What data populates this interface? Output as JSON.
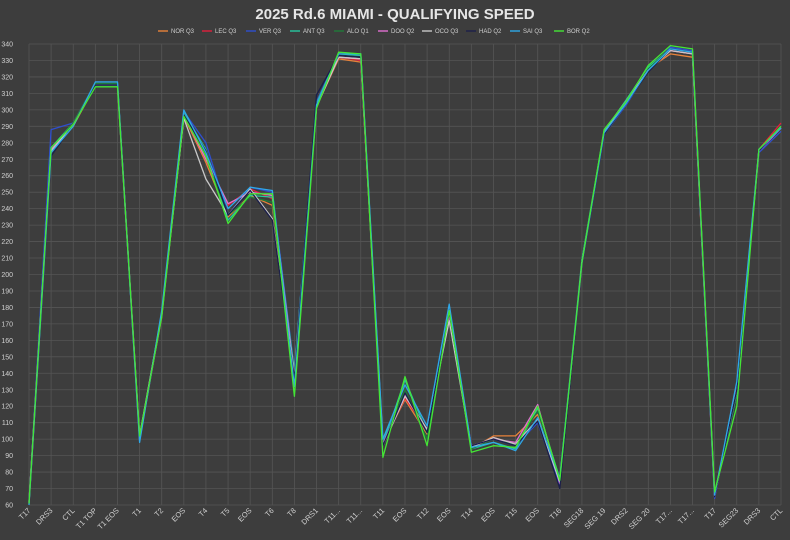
{
  "chart_data": {
    "type": "line",
    "title": "2025 Rd.6 MIAMI - QUALIFYING SPEED",
    "xlabel": "",
    "ylabel": "",
    "ylim": [
      60,
      340
    ],
    "y_ticks": [
      60,
      70,
      80,
      90,
      100,
      110,
      120,
      130,
      140,
      150,
      160,
      170,
      180,
      190,
      200,
      210,
      220,
      230,
      240,
      250,
      260,
      270,
      280,
      290,
      300,
      310,
      320,
      330,
      340
    ],
    "grid": true,
    "legend_position": "top-center",
    "categories": [
      "T17",
      "DRS3",
      "CTL",
      "T1 TOP",
      "T1 EOS",
      "T1",
      "T2",
      "EOS",
      "T4",
      "T5",
      "EOS",
      "T6",
      "T8",
      "DRS1",
      "T11...",
      "T11...",
      "T11",
      "EOS",
      "T12",
      "EOS",
      "T14",
      "EOS",
      "T15",
      "EOS",
      "T16",
      "SEG18",
      "SEG 19",
      "DRS2",
      "SEG 20",
      "T17...",
      "T17...",
      "T17",
      "SEG23",
      "DRS3",
      "CTL"
    ],
    "series": [
      {
        "name": "NOR Q3",
        "color": "#e8823a",
        "values": [
          61,
          275,
          290,
          315,
          315,
          100,
          175,
          296,
          268,
          235,
          248,
          242,
          140,
          302,
          331,
          329,
          98,
          124,
          103,
          175,
          94,
          102,
          102,
          115,
          74,
          207,
          287,
          306,
          325,
          334,
          332,
          65,
          130,
          275,
          290
        ]
      },
      {
        "name": "LEC Q3",
        "color": "#e0203c",
        "values": [
          62,
          276,
          291,
          315,
          315,
          101,
          174,
          297,
          270,
          242,
          252,
          246,
          138,
          303,
          332,
          330,
          97,
          125,
          105,
          176,
          95,
          101,
          97,
          118,
          72,
          206,
          286,
          305,
          324,
          336,
          334,
          66,
          131,
          276,
          292
        ]
      },
      {
        "name": "VER Q3",
        "color": "#2f4fcf",
        "values": [
          61,
          288,
          292,
          316,
          316,
          99,
          176,
          299,
          280,
          236,
          253,
          250,
          142,
          305,
          334,
          333,
          99,
          128,
          104,
          178,
          96,
          100,
          96,
          110,
          72,
          206,
          285,
          303,
          324,
          338,
          336,
          64,
          132,
          274,
          287
        ]
      },
      {
        "name": "ANT Q3",
        "color": "#27c7a0",
        "values": [
          62,
          277,
          292,
          316,
          316,
          100,
          175,
          298,
          276,
          233,
          248,
          247,
          141,
          304,
          334,
          333,
          97,
          136,
          104,
          176,
          94,
          98,
          94,
          119,
          76,
          209,
          287,
          306,
          326,
          337,
          335,
          66,
          128,
          276,
          289
        ]
      },
      {
        "name": "ALO Q1",
        "color": "#1f7a3a",
        "values": [
          61,
          276,
          292,
          316,
          316,
          101,
          176,
          297,
          272,
          236,
          247,
          244,
          138,
          303,
          333,
          332,
          96,
          130,
          100,
          178,
          94,
          100,
          97,
          117,
          74,
          208,
          286,
          305,
          325,
          337,
          335,
          67,
          129,
          275,
          290
        ]
      },
      {
        "name": "DOO Q2",
        "color": "#e070d0",
        "values": [
          62,
          276,
          291,
          315,
          315,
          100,
          175,
          297,
          270,
          243,
          250,
          248,
          138,
          302,
          332,
          331,
          97,
          127,
          106,
          175,
          96,
          100,
          98,
          121,
          73,
          207,
          286,
          305,
          324,
          336,
          334,
          65,
          131,
          275,
          289
        ]
      },
      {
        "name": "OCO Q3",
        "color": "#c8c8c8",
        "values": [
          61,
          275,
          291,
          315,
          315,
          102,
          176,
          295,
          258,
          236,
          252,
          234,
          139,
          302,
          332,
          331,
          96,
          126,
          106,
          172,
          95,
          101,
          97,
          112,
          74,
          207,
          286,
          305,
          324,
          336,
          334,
          66,
          130,
          275,
          290
        ]
      },
      {
        "name": "HAD Q2",
        "color": "#1c1f4a",
        "values": [
          61,
          272,
          291,
          315,
          315,
          100,
          175,
          297,
          275,
          236,
          251,
          233,
          137,
          309,
          333,
          332,
          96,
          128,
          104,
          177,
          96,
          100,
          96,
          111,
          70,
          206,
          285,
          304,
          323,
          337,
          335,
          65,
          130,
          275,
          290
        ]
      },
      {
        "name": "SAI Q3",
        "color": "#2fa8e8",
        "values": [
          60,
          274,
          290,
          317,
          317,
          98,
          178,
          300,
          274,
          240,
          253,
          251,
          132,
          303,
          334,
          334,
          100,
          133,
          108,
          182,
          95,
          98,
          93,
          113,
          76,
          207,
          286,
          304,
          324,
          337,
          335,
          66,
          135,
          276,
          289
        ]
      },
      {
        "name": "BOR Q2",
        "color": "#44e636",
        "values": [
          61,
          277,
          291,
          314,
          314,
          102,
          174,
          296,
          272,
          231,
          249,
          249,
          126,
          301,
          335,
          334,
          89,
          138,
          96,
          178,
          92,
          96,
          95,
          120,
          75,
          207,
          288,
          305,
          327,
          339,
          337,
          68,
          120,
          276,
          290
        ]
      }
    ]
  }
}
